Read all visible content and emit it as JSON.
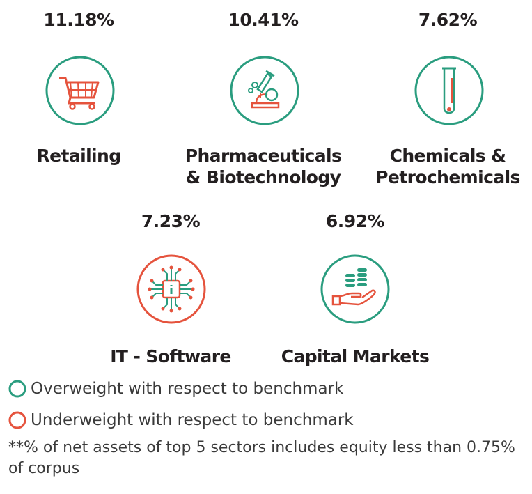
{
  "colors": {
    "overweight": "#2a9d7f",
    "underweight": "#e5533d",
    "text": "#231f20"
  },
  "sectors": [
    {
      "pct": "11.18%",
      "name_line1": "Retailing",
      "name_line2": "",
      "status": "overweight",
      "icon": "shopping-cart-icon"
    },
    {
      "pct": "10.41%",
      "name_line1": "Pharmaceuticals",
      "name_line2": "& Biotechnology",
      "status": "overweight",
      "icon": "microscope-icon"
    },
    {
      "pct": "7.62%",
      "name_line1": "Chemicals &",
      "name_line2": "Petrochemicals",
      "status": "overweight",
      "icon": "test-tube-icon"
    },
    {
      "pct": "7.23%",
      "name_line1": "IT - Software",
      "name_line2": "",
      "status": "underweight",
      "icon": "microchip-icon"
    },
    {
      "pct": "6.92%",
      "name_line1": "Capital Markets",
      "name_line2": "",
      "status": "overweight",
      "icon": "coins-hand-icon"
    }
  ],
  "legend": {
    "overweight_label": "Overweight with respect to benchmark",
    "underweight_label": "Underweight with respect to benchmark"
  },
  "note": "**% of net assets of top 5 sectors includes equity less than 0.75% of corpus"
}
